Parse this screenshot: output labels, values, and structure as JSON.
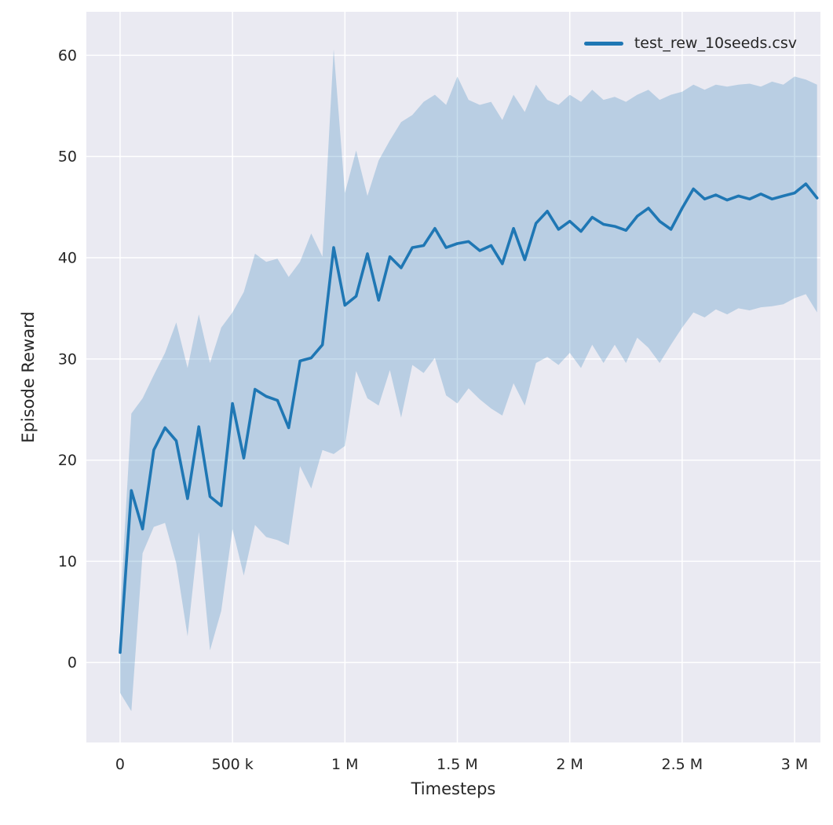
{
  "figure": {
    "legend_label": "test_rew_10seeds.csv"
  },
  "colors": {
    "line": "#1f77b4",
    "band_opacity": 0.24,
    "plot_bg": "#eaeaf2",
    "grid": "#ffffff",
    "tick_text": "#262626",
    "label_text": "#262626"
  },
  "chart_data": {
    "type": "line",
    "title": "",
    "xlabel": "Timesteps",
    "ylabel": "Episode Reward",
    "legend": [
      "test_rew_10seeds.csv"
    ],
    "legend_position": "upper right",
    "grid": true,
    "xlim": [
      -150000,
      3115000
    ],
    "ylim": [
      -7.9,
      64.3
    ],
    "x_tick_values": [
      0,
      500000,
      1000000,
      1500000,
      2000000,
      2500000,
      3000000
    ],
    "x_tick_labels": [
      "0",
      "500 k",
      "1 M",
      "1.5 M",
      "2 M",
      "2.5 M",
      "3 M"
    ],
    "y_tick_values": [
      0,
      10,
      20,
      30,
      40,
      50,
      60
    ],
    "y_tick_labels": [
      "0",
      "10",
      "20",
      "30",
      "40",
      "50",
      "60"
    ],
    "series": [
      {
        "name": "test_rew_10seeds.csv",
        "x": [
          0,
          50000,
          100000,
          150000,
          200000,
          250000,
          300000,
          350000,
          400000,
          450000,
          500000,
          550000,
          600000,
          650000,
          700000,
          750000,
          800000,
          850000,
          900000,
          950000,
          1000000,
          1050000,
          1100000,
          1150000,
          1200000,
          1250000,
          1300000,
          1350000,
          1400000,
          1450000,
          1500000,
          1550000,
          1600000,
          1650000,
          1700000,
          1750000,
          1800000,
          1850000,
          1900000,
          1950000,
          2000000,
          2050000,
          2100000,
          2150000,
          2200000,
          2250000,
          2300000,
          2350000,
          2400000,
          2450000,
          2500000,
          2550000,
          2600000,
          2650000,
          2700000,
          2750000,
          2800000,
          2850000,
          2900000,
          2950000,
          3000000,
          3050000,
          3100000
        ],
        "mean": [
          1.0,
          17.0,
          13.2,
          21.0,
          23.2,
          21.9,
          16.2,
          23.3,
          16.4,
          15.5,
          25.6,
          20.2,
          27.0,
          26.3,
          25.9,
          23.2,
          29.8,
          30.1,
          31.4,
          41.0,
          35.3,
          36.2,
          40.4,
          35.8,
          40.1,
          39.0,
          41.0,
          41.2,
          42.9,
          41.0,
          41.4,
          41.6,
          40.7,
          41.2,
          39.4,
          42.9,
          39.8,
          43.4,
          44.6,
          42.8,
          43.6,
          42.6,
          44.0,
          43.3,
          43.1,
          42.7,
          44.1,
          44.9,
          43.6,
          42.8,
          44.9,
          46.8,
          45.8,
          46.2,
          45.7,
          46.1,
          45.8,
          46.3,
          45.8,
          46.1,
          46.4,
          47.3,
          45.9
        ],
        "band_lower": [
          -3.0,
          -4.8,
          10.8,
          13.4,
          13.8,
          9.8,
          2.6,
          12.9,
          1.2,
          5.1,
          13.2,
          8.6,
          13.6,
          12.4,
          12.1,
          11.6,
          19.4,
          17.2,
          21.0,
          20.6,
          21.4,
          28.8,
          26.1,
          25.4,
          28.9,
          24.2,
          29.4,
          28.6,
          30.1,
          26.4,
          25.6,
          27.1,
          26.0,
          25.1,
          24.4,
          27.6,
          25.4,
          29.6,
          30.2,
          29.4,
          30.6,
          29.1,
          31.4,
          29.6,
          31.4,
          29.6,
          32.1,
          31.1,
          29.6,
          31.4,
          33.1,
          34.6,
          34.1,
          34.9,
          34.4,
          35.0,
          34.8,
          35.1,
          35.2,
          35.4,
          36.0,
          36.4,
          34.6
        ],
        "band_upper": [
          5.0,
          24.6,
          26.1,
          28.4,
          30.6,
          33.6,
          29.1,
          34.4,
          29.6,
          33.1,
          34.6,
          36.6,
          40.4,
          39.6,
          39.9,
          38.1,
          39.6,
          42.4,
          40.1,
          60.6,
          46.4,
          50.6,
          46.1,
          49.6,
          51.6,
          53.4,
          54.1,
          55.4,
          56.1,
          55.1,
          57.9,
          55.6,
          55.1,
          55.4,
          53.6,
          56.1,
          54.4,
          57.1,
          55.6,
          55.1,
          56.1,
          55.4,
          56.6,
          55.6,
          55.9,
          55.4,
          56.1,
          56.6,
          55.6,
          56.1,
          56.4,
          57.1,
          56.6,
          57.1,
          56.9,
          57.1,
          57.2,
          56.9,
          57.4,
          57.1,
          57.9,
          57.6,
          57.1
        ]
      }
    ]
  }
}
